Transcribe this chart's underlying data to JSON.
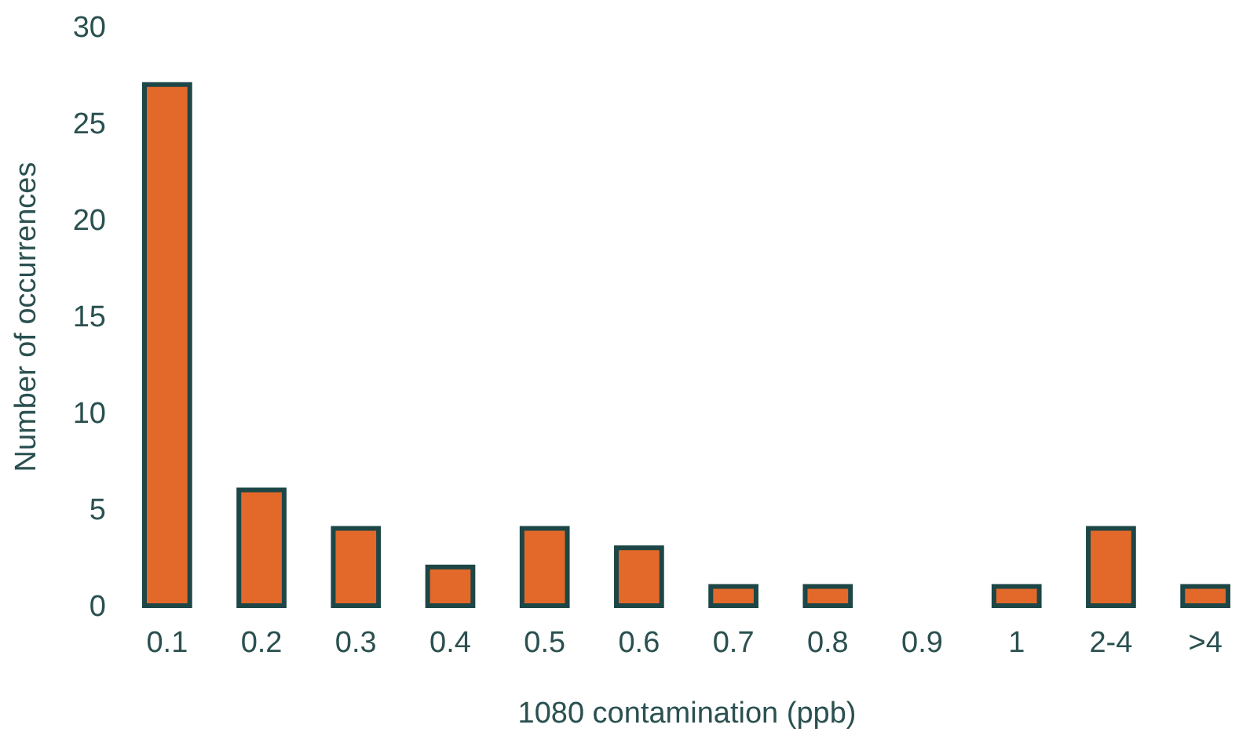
{
  "chart_data": {
    "type": "bar",
    "xlabel": "1080 contamination (ppb)",
    "ylabel": "Number of occurrences",
    "categories": [
      "0.1",
      "0.2",
      "0.3",
      "0.4",
      "0.5",
      "0.6",
      "0.7",
      "0.8",
      "0.9",
      "1",
      "2-4",
      ">4"
    ],
    "values": [
      27,
      6,
      4,
      2,
      4,
      3,
      1,
      1,
      0,
      1,
      4,
      1
    ],
    "color": "#e2692a",
    "ylim": [
      0,
      30
    ],
    "yticks": [
      0,
      5,
      10,
      15,
      20,
      25,
      30
    ],
    "grid": false,
    "legend": false
  }
}
